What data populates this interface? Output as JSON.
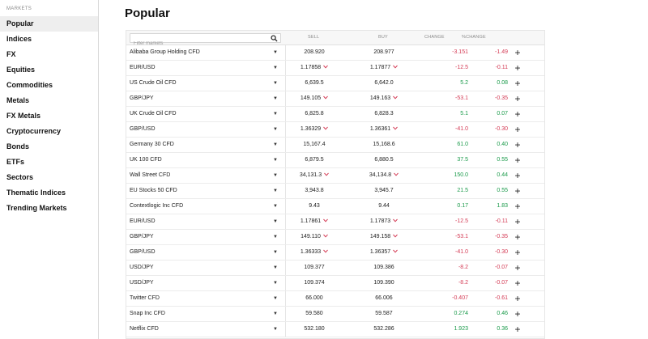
{
  "colors": {
    "positive": "#1a9a4a",
    "negative": "#d43b55"
  },
  "sidebar": {
    "heading": "MARKETS",
    "items": [
      {
        "label": "Popular",
        "active": true
      },
      {
        "label": "Indices"
      },
      {
        "label": "FX"
      },
      {
        "label": "Equities"
      },
      {
        "label": "Commodities"
      },
      {
        "label": "Metals"
      },
      {
        "label": "FX Metals"
      },
      {
        "label": "Cryptocurrency"
      },
      {
        "label": "Bonds"
      },
      {
        "label": "ETFs"
      },
      {
        "label": "Sectors"
      },
      {
        "label": "Thematic Indices"
      },
      {
        "label": "Trending Markets"
      }
    ]
  },
  "main": {
    "title": "Popular",
    "filter_placeholder": "Filter markets",
    "columns": {
      "sell": "SELL",
      "buy": "BUY",
      "change": "CHANGE",
      "pct_change": "%CHANGE"
    },
    "rows": [
      {
        "name": "Alibaba Group Holding CFD",
        "sell": "208.920",
        "buy": "208.977",
        "sell_down": false,
        "buy_down": false,
        "change": "-3.151",
        "pct": "-1.49",
        "dir": "neg"
      },
      {
        "name": "EUR/USD",
        "sell": "1.17858",
        "buy": "1.17877",
        "sell_down": true,
        "buy_down": true,
        "change": "-12.5",
        "pct": "-0.11",
        "dir": "neg"
      },
      {
        "name": "US Crude Oil CFD",
        "sell": "6,639.5",
        "buy": "6,642.0",
        "sell_down": false,
        "buy_down": false,
        "change": "5.2",
        "pct": "0.08",
        "dir": "pos"
      },
      {
        "name": "GBP/JPY",
        "sell": "149.105",
        "buy": "149.163",
        "sell_down": true,
        "buy_down": true,
        "change": "-53.1",
        "pct": "-0.35",
        "dir": "neg"
      },
      {
        "name": "UK Crude Oil CFD",
        "sell": "6,825.8",
        "buy": "6,828.3",
        "sell_down": false,
        "buy_down": false,
        "change": "5.1",
        "pct": "0.07",
        "dir": "pos"
      },
      {
        "name": "GBP/USD",
        "sell": "1.36329",
        "buy": "1.36361",
        "sell_down": true,
        "buy_down": true,
        "change": "-41.0",
        "pct": "-0.30",
        "dir": "neg"
      },
      {
        "name": "Germany 30 CFD",
        "sell": "15,167.4",
        "buy": "15,168.6",
        "sell_down": false,
        "buy_down": false,
        "change": "61.0",
        "pct": "0.40",
        "dir": "pos"
      },
      {
        "name": "UK 100 CFD",
        "sell": "6,879.5",
        "buy": "6,880.5",
        "sell_down": false,
        "buy_down": false,
        "change": "37.5",
        "pct": "0.55",
        "dir": "pos"
      },
      {
        "name": "Wall Street CFD",
        "sell": "34,131.3",
        "buy": "34,134.8",
        "sell_down": true,
        "buy_down": true,
        "change": "150.0",
        "pct": "0.44",
        "dir": "pos"
      },
      {
        "name": "EU Stocks 50 CFD",
        "sell": "3,943.8",
        "buy": "3,945.7",
        "sell_down": false,
        "buy_down": false,
        "change": "21.5",
        "pct": "0.55",
        "dir": "pos"
      },
      {
        "name": "Contextlogic Inc CFD",
        "sell": "9.43",
        "buy": "9.44",
        "sell_down": false,
        "buy_down": false,
        "change": "0.17",
        "pct": "1.83",
        "dir": "pos"
      },
      {
        "name": "EUR/USD",
        "sell": "1.17861",
        "buy": "1.17873",
        "sell_down": true,
        "buy_down": true,
        "change": "-12.5",
        "pct": "-0.11",
        "dir": "neg"
      },
      {
        "name": "GBP/JPY",
        "sell": "149.110",
        "buy": "149.158",
        "sell_down": true,
        "buy_down": true,
        "change": "-53.1",
        "pct": "-0.35",
        "dir": "neg"
      },
      {
        "name": "GBP/USD",
        "sell": "1.36333",
        "buy": "1.36357",
        "sell_down": true,
        "buy_down": true,
        "change": "-41.0",
        "pct": "-0.30",
        "dir": "neg"
      },
      {
        "name": "USD/JPY",
        "sell": "109.377",
        "buy": "109.386",
        "sell_down": false,
        "buy_down": false,
        "change": "-8.2",
        "pct": "-0.07",
        "dir": "neg"
      },
      {
        "name": "USD/JPY",
        "sell": "109.374",
        "buy": "109.390",
        "sell_down": false,
        "buy_down": false,
        "change": "-8.2",
        "pct": "-0.07",
        "dir": "neg"
      },
      {
        "name": "Twitter CFD",
        "sell": "66.000",
        "buy": "66.006",
        "sell_down": false,
        "buy_down": false,
        "change": "-0.407",
        "pct": "-0.61",
        "dir": "neg"
      },
      {
        "name": "Snap Inc CFD",
        "sell": "59.580",
        "buy": "59.587",
        "sell_down": false,
        "buy_down": false,
        "change": "0.274",
        "pct": "0.46",
        "dir": "pos"
      },
      {
        "name": "Netflix CFD",
        "sell": "532.180",
        "buy": "532.286",
        "sell_down": false,
        "buy_down": false,
        "change": "1.923",
        "pct": "0.36",
        "dir": "pos"
      }
    ]
  }
}
